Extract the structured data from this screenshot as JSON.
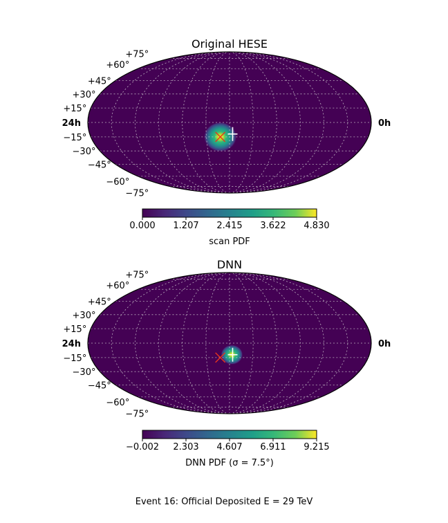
{
  "figure_caption": "Event 16:  Official Deposited E = 29 TeV",
  "chart_data": [
    {
      "type": "heatmap",
      "projection": "mollweide",
      "title": "Original HESE",
      "ra_labels": {
        "left": "24h",
        "right": "0h"
      },
      "dec_labels": [
        "+75°",
        "+60°",
        "+45°",
        "+30°",
        "+15°",
        "−15°",
        "−30°",
        "−45°",
        "−60°",
        "−75°"
      ],
      "dec_values": [
        75,
        60,
        45,
        30,
        15,
        -15,
        -30,
        -45,
        -60,
        -75
      ],
      "grid": true,
      "pdf_peak": {
        "lon_deg": 12,
        "dec_deg": -15,
        "sigma_deg": 6
      },
      "markers": [
        {
          "name": "original",
          "symbol": "x",
          "color": "#e8341c",
          "lon_deg": 12,
          "dec_deg": -15
        },
        {
          "name": "true",
          "symbol": "+",
          "color": "#ffffff",
          "lon_deg": -4,
          "dec_deg": -12
        }
      ],
      "colorbar": {
        "label": "scan PDF",
        "ticks": [
          "0.000",
          "1.207",
          "2.415",
          "3.622",
          "4.830"
        ],
        "min": 0.0,
        "max": 4.83
      }
    },
    {
      "type": "heatmap",
      "projection": "mollweide",
      "title": "DNN",
      "ra_labels": {
        "left": "24h",
        "right": "0h"
      },
      "dec_labels": [
        "+75°",
        "+60°",
        "+45°",
        "+30°",
        "+15°",
        "−15°",
        "−30°",
        "−45°",
        "−60°",
        "−75°"
      ],
      "dec_values": [
        75,
        60,
        45,
        30,
        15,
        -15,
        -30,
        -45,
        -60,
        -75
      ],
      "grid": true,
      "pdf_peak": {
        "lon_deg": -3,
        "dec_deg": -12,
        "sigma_deg": 4
      },
      "markers": [
        {
          "name": "original",
          "symbol": "x",
          "color": "#e8341c",
          "lon_deg": 12,
          "dec_deg": -15
        },
        {
          "name": "true",
          "symbol": "+",
          "color": "#ffffff",
          "lon_deg": -4,
          "dec_deg": -12
        }
      ],
      "colorbar": {
        "label": "DNN PDF (σ = 7.5°)",
        "ticks": [
          "−0.002",
          "2.303",
          "4.607",
          "6.911",
          "9.215"
        ],
        "min": -0.002,
        "max": 9.215
      }
    }
  ]
}
